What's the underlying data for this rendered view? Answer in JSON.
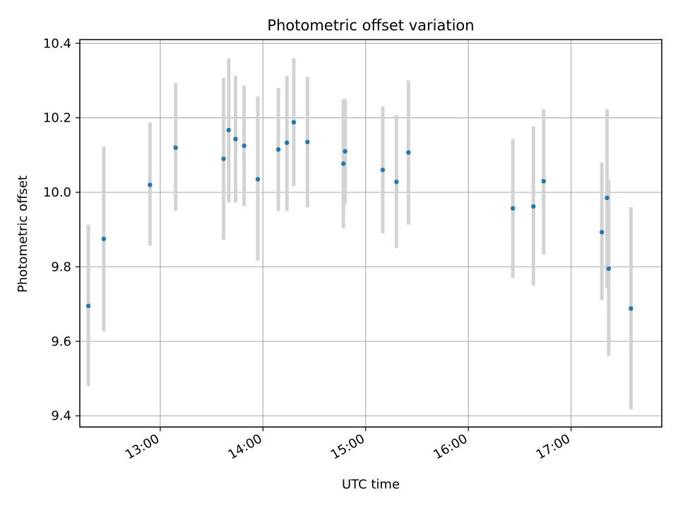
{
  "chart_data": {
    "type": "scatter",
    "title": "Photometric offset variation",
    "xlabel": "UTC time",
    "ylabel": "Photometric offset",
    "x_unit": "time",
    "xlim": [
      "12:13",
      "17:53"
    ],
    "ylim": [
      9.37,
      10.41
    ],
    "yticks": [
      9.4,
      9.6,
      9.8,
      10.0,
      10.2,
      10.4
    ],
    "ytick_labels": [
      "9.4",
      "9.6",
      "9.8",
      "10.0",
      "10.2",
      "10.4"
    ],
    "xticks": [
      "13:00",
      "14:00",
      "15:00",
      "16:00",
      "17:00"
    ],
    "xtick_labels": [
      "13:00",
      "14:00",
      "15:00",
      "16:00",
      "17:00"
    ],
    "grid": true,
    "marker_color": "#1f77b4",
    "errorbar_color": "#d3d3d3",
    "series": [
      {
        "points": [
          {
            "x": "12:18",
            "y": 9.695,
            "ylow": 9.48,
            "yhigh": 9.913
          },
          {
            "x": "12:27",
            "y": 9.875,
            "ylow": 9.627,
            "yhigh": 10.123
          },
          {
            "x": "12:54",
            "y": 10.02,
            "ylow": 9.857,
            "yhigh": 10.187
          },
          {
            "x": "13:09",
            "y": 10.12,
            "ylow": 9.95,
            "yhigh": 10.293
          },
          {
            "x": "13:37",
            "y": 10.09,
            "ylow": 9.873,
            "yhigh": 10.307
          },
          {
            "x": "13:40",
            "y": 10.167,
            "ylow": 9.973,
            "yhigh": 10.36
          },
          {
            "x": "13:44",
            "y": 10.143,
            "ylow": 9.973,
            "yhigh": 10.313
          },
          {
            "x": "13:49",
            "y": 10.125,
            "ylow": 9.963,
            "yhigh": 10.287
          },
          {
            "x": "13:57",
            "y": 10.035,
            "ylow": 9.817,
            "yhigh": 10.257
          },
          {
            "x": "14:09",
            "y": 10.115,
            "ylow": 9.95,
            "yhigh": 10.28
          },
          {
            "x": "14:14",
            "y": 10.133,
            "ylow": 9.95,
            "yhigh": 10.313
          },
          {
            "x": "14:18",
            "y": 10.188,
            "ylow": 10.017,
            "yhigh": 10.36
          },
          {
            "x": "14:26",
            "y": 10.135,
            "ylow": 9.96,
            "yhigh": 10.31
          },
          {
            "x": "14:47",
            "y": 10.077,
            "ylow": 9.903,
            "yhigh": 10.25
          },
          {
            "x": "14:48",
            "y": 10.11,
            "ylow": 9.967,
            "yhigh": 10.25
          },
          {
            "x": "15:10",
            "y": 10.06,
            "ylow": 9.89,
            "yhigh": 10.23
          },
          {
            "x": "15:18",
            "y": 10.028,
            "ylow": 9.85,
            "yhigh": 10.207
          },
          {
            "x": "15:25",
            "y": 10.107,
            "ylow": 9.913,
            "yhigh": 10.3
          },
          {
            "x": "16:26",
            "y": 9.957,
            "ylow": 9.77,
            "yhigh": 10.143
          },
          {
            "x": "16:38",
            "y": 9.962,
            "ylow": 9.75,
            "yhigh": 10.177
          },
          {
            "x": "16:44",
            "y": 10.03,
            "ylow": 9.833,
            "yhigh": 10.223
          },
          {
            "x": "17:18",
            "y": 9.893,
            "ylow": 9.71,
            "yhigh": 10.08
          },
          {
            "x": "17:21",
            "y": 9.985,
            "ylow": 9.743,
            "yhigh": 10.223
          },
          {
            "x": "17:22",
            "y": 9.795,
            "ylow": 9.56,
            "yhigh": 10.033
          },
          {
            "x": "17:35",
            "y": 9.688,
            "ylow": 9.417,
            "yhigh": 9.96
          }
        ]
      }
    ]
  }
}
